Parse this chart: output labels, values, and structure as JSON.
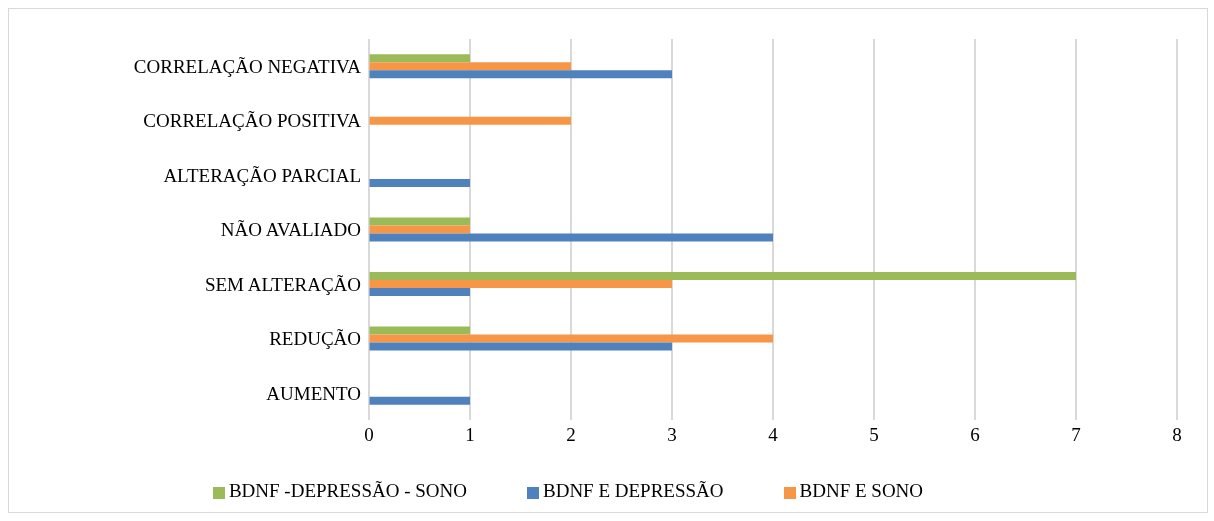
{
  "chart_data": {
    "type": "bar",
    "orientation": "horizontal",
    "categories": [
      "CORRELAÇÃO NEGATIVA",
      "CORRELAÇÃO POSITIVA",
      "ALTERAÇÃO PARCIAL",
      "NÃO AVALIADO",
      "SEM ALTERAÇÃO",
      "REDUÇÃO",
      "AUMENTO"
    ],
    "series": [
      {
        "name": "BDNF -DEPRESSÃO - SONO",
        "color": "#9bbb59",
        "values": [
          1,
          null,
          null,
          1,
          7,
          1,
          null
        ]
      },
      {
        "name": "BDNF E SONO",
        "color": "#f79646",
        "values": [
          2,
          2,
          null,
          1,
          3,
          4,
          null
        ]
      },
      {
        "name": "BDNF E DEPRESSÃO",
        "color": "#4f81bd",
        "values": [
          3,
          null,
          1,
          4,
          1,
          3,
          1
        ]
      }
    ],
    "xlim": [
      0,
      8
    ],
    "xticks": [
      0,
      1,
      2,
      3,
      4,
      5,
      6,
      7,
      8
    ],
    "grid": "x",
    "legend": "bottom"
  }
}
